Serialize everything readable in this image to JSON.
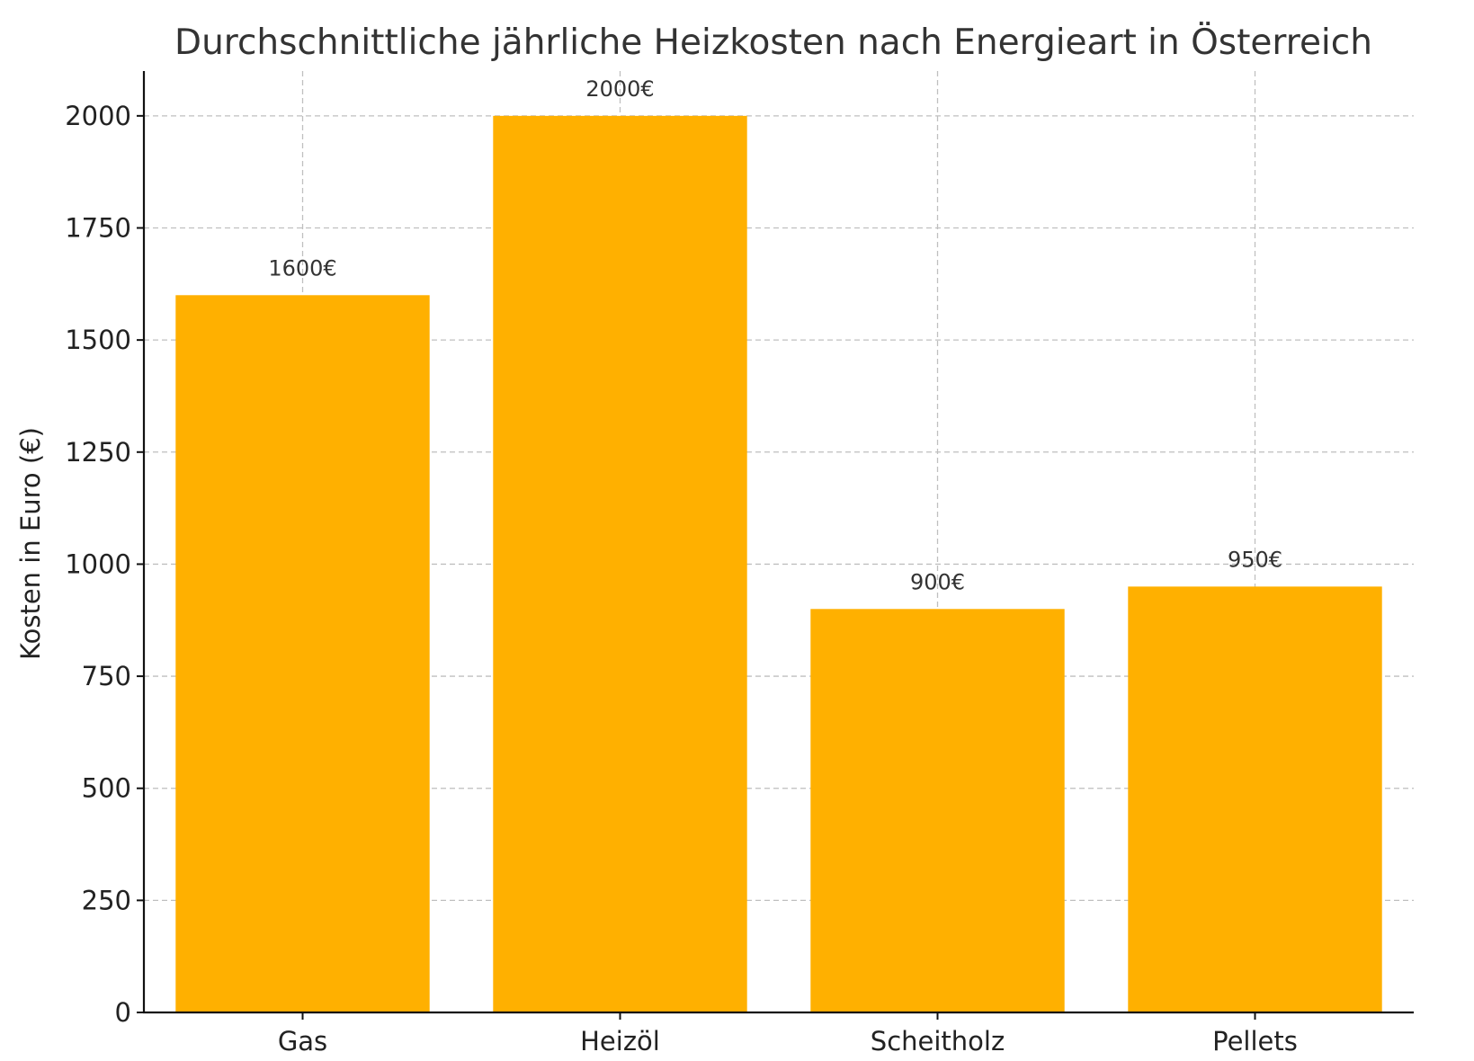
{
  "chart_data": {
    "type": "bar",
    "title": "Durchschnittliche jährliche Heizkosten nach Energieart in Österreich",
    "xlabel": "",
    "ylabel": "Kosten in Euro (€)",
    "categories": [
      "Gas",
      "Heizöl",
      "Scheitholz",
      "Pellets"
    ],
    "values": [
      1600,
      2000,
      900,
      950
    ],
    "data_labels": [
      "1600€",
      "2000€",
      "900€",
      "950€"
    ],
    "ylim": [
      0,
      2100
    ],
    "yticks": [
      0,
      250,
      500,
      750,
      1000,
      1250,
      1500,
      1750,
      2000
    ],
    "ytick_labels": [
      "0",
      "250",
      "500",
      "750",
      "1000",
      "1250",
      "1500",
      "1750",
      "2000"
    ],
    "grid": true,
    "bar_color": "#FFB000"
  }
}
